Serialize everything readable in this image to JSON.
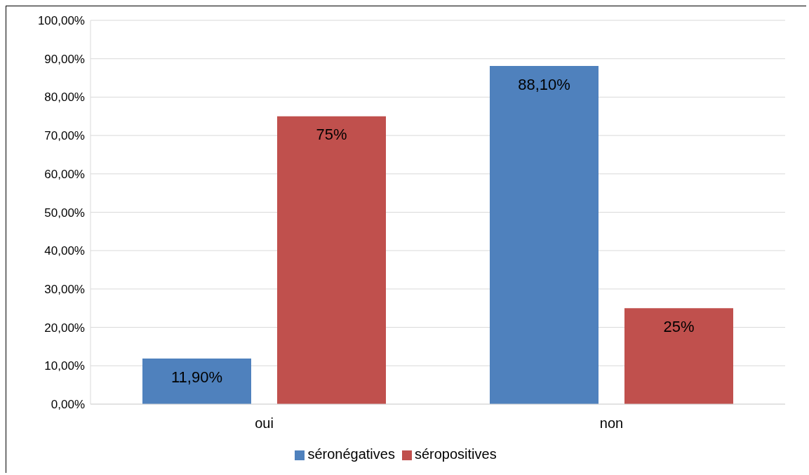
{
  "chart_data": {
    "type": "bar",
    "categories": [
      "oui",
      "non"
    ],
    "series": [
      {
        "name": "séronégatives",
        "color": "#4f81bd",
        "values": [
          11.9,
          88.1
        ],
        "value_labels": [
          "11,90%",
          "88,10%"
        ]
      },
      {
        "name": "séropositives",
        "color": "#c0504d",
        "values": [
          75,
          25
        ],
        "value_labels": [
          "75%",
          "25%"
        ]
      }
    ],
    "ylim": [
      0,
      100
    ],
    "yticks": [
      {
        "value": 0,
        "label": "0,00%"
      },
      {
        "value": 10,
        "label": "10,00%"
      },
      {
        "value": 20,
        "label": "20,00%"
      },
      {
        "value": 30,
        "label": "30,00%"
      },
      {
        "value": 40,
        "label": "40,00%"
      },
      {
        "value": 50,
        "label": "50,00%"
      },
      {
        "value": 60,
        "label": "60,00%"
      },
      {
        "value": 70,
        "label": "70,00%"
      },
      {
        "value": 80,
        "label": "80,00%"
      },
      {
        "value": 90,
        "label": "90,00%"
      },
      {
        "value": 100,
        "label": "100,00%"
      }
    ],
    "grid": "y",
    "legend": "bottom"
  }
}
